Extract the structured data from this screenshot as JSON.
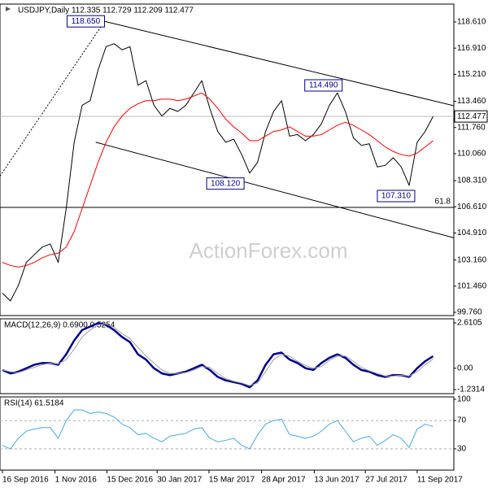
{
  "chart_data": [
    {
      "type": "line",
      "title": "USDJPY,Daily  112.335 112.729 112.209 112.477",
      "x": [
        0,
        1,
        2,
        3,
        4,
        5,
        6,
        7,
        8,
        9,
        10,
        11,
        12,
        13,
        14,
        15,
        16,
        17,
        18,
        19,
        20,
        21,
        22,
        23,
        24,
        25,
        26,
        27,
        28,
        29,
        30,
        31,
        32,
        33,
        34,
        35,
        36,
        37,
        38,
        39,
        40,
        41,
        42,
        43,
        44,
        45,
        46,
        47,
        48,
        49,
        50,
        51,
        52,
        53,
        54
      ],
      "xlim": [
        -0.3,
        56.6
      ],
      "xticks": [
        {
          "value": 0,
          "label": "16 Sep 2016"
        },
        {
          "value": 6.6,
          "label": "1 Nov 2016"
        },
        {
          "value": 13.1,
          "label": "15 Dec 2016"
        },
        {
          "value": 19.4,
          "label": "30 Jan 2017"
        },
        {
          "value": 25.9,
          "label": "15 Mar 2017"
        },
        {
          "value": 32.5,
          "label": "28 Apr 2017"
        },
        {
          "value": 39.1,
          "label": "13 Jun 2017"
        },
        {
          "value": 45.5,
          "label": "27 Jul 2017"
        },
        {
          "value": 52.0,
          "label": "11 Sep 2017"
        }
      ],
      "ylim": [
        99.55,
        119.77
      ],
      "yticks": [
        {
          "value": 118.61,
          "label": "118.610"
        },
        {
          "value": 116.91,
          "label": "116.910"
        },
        {
          "value": 115.21,
          "label": "115.210"
        },
        {
          "value": 113.46,
          "label": "113.460"
        },
        {
          "value": 111.76,
          "label": "111.760"
        },
        {
          "value": 110.06,
          "label": "110.060"
        },
        {
          "value": 108.31,
          "label": "108.310"
        },
        {
          "value": 106.61,
          "label": "106.610"
        },
        {
          "value": 104.91,
          "label": "104.910"
        },
        {
          "value": 103.16,
          "label": "103.160"
        },
        {
          "value": 101.46,
          "label": "101.460"
        },
        {
          "value": 99.76,
          "label": "99.760"
        }
      ],
      "series": [
        {
          "color": "#000000",
          "values": [
            101.0,
            100.5,
            101.5,
            103.0,
            103.5,
            104.0,
            104.2,
            103.0,
            106.5,
            110.8,
            113.2,
            113.5,
            115.5,
            117.0,
            117.2,
            116.8,
            117.0,
            114.5,
            114.8,
            113.2,
            112.5,
            113.0,
            112.8,
            113.2,
            114.0,
            114.8,
            113.0,
            111.5,
            110.8,
            111.0,
            110.0,
            108.8,
            109.5,
            111.5,
            112.8,
            113.5,
            111.2,
            111.3,
            110.9,
            111.3,
            112.0,
            113.2,
            114.0,
            112.8,
            111.1,
            110.6,
            110.7,
            109.2,
            109.3,
            109.8,
            109.2,
            108.0,
            110.8,
            111.5,
            112.477
          ]
        },
        {
          "color": "#ff0000",
          "values": [
            103.0,
            102.8,
            102.7,
            102.8,
            103.0,
            103.3,
            103.5,
            103.6,
            104.0,
            105.0,
            106.5,
            108.0,
            109.5,
            110.8,
            111.8,
            112.5,
            113.0,
            113.3,
            113.5,
            113.5,
            113.6,
            113.6,
            113.5,
            113.6,
            113.8,
            114.0,
            113.6,
            113.0,
            112.3,
            111.8,
            111.4,
            110.9,
            110.9,
            111.2,
            111.5,
            111.6,
            111.8,
            111.5,
            111.2,
            111.2,
            111.3,
            111.6,
            111.9,
            112.1,
            111.9,
            111.6,
            111.3,
            110.9,
            110.5,
            110.2,
            110.0,
            109.9,
            110.1,
            110.5,
            110.9
          ]
        }
      ],
      "lines": [
        {
          "x": [
            12.8,
            56.6
          ],
          "y": [
            118.65,
            113.17
          ]
        },
        {
          "x": [
            11.7,
            56.6
          ],
          "y": [
            110.8,
            104.6
          ]
        },
        {
          "x": [
            -0.3,
            12.8
          ],
          "y": [
            108.6,
            118.65
          ],
          "dash": true
        }
      ],
      "hlines": [
        {
          "y": 106.57,
          "level": 61.8
        }
      ],
      "annotations": [
        {
          "x": 12.8,
          "value": 118.65,
          "label": "118.650"
        },
        {
          "x": 42.6,
          "value": 114.49,
          "label": "114.490"
        },
        {
          "x": 30.3,
          "value": 108.12,
          "label": "108.120"
        },
        {
          "x": 51.7,
          "value": 107.31,
          "label": "107.310"
        }
      ],
      "last_price": 112.477,
      "watermark": "ActionForex.com"
    },
    {
      "type": "line",
      "title": "MACD(12,26,9) 0.6900 0.5254",
      "ylim": [
        -1.465,
        2.845
      ],
      "yticks": [
        2.6105,
        {
          "value": 0,
          "label": "0.00"
        },
        -1.2314
      ],
      "series": [
        {
          "color": "#00008b",
          "width": 2.5,
          "values": [
            -0.1,
            -0.3,
            -0.2,
            0,
            0.2,
            0.3,
            0.3,
            0.2,
            0.8,
            1.6,
            2.2,
            2.4,
            2.6,
            2.5,
            2.2,
            1.8,
            1.5,
            0.8,
            0.5,
            0.0,
            -0.3,
            -0.4,
            -0.3,
            -0.2,
            0.0,
            0.2,
            -0.1,
            -0.5,
            -0.7,
            -0.8,
            -0.9,
            -1.1,
            -0.7,
            0.2,
            0.8,
            0.9,
            0.5,
            0.3,
            0.0,
            -0.1,
            0.3,
            0.6,
            0.8,
            0.6,
            0.2,
            -0.1,
            -0.2,
            -0.4,
            -0.5,
            -0.4,
            -0.4,
            -0.5,
            0.0,
            0.4,
            0.69
          ]
        },
        {
          "color": "#a0a0a0",
          "width": 1,
          "values": [
            -0.1,
            -0.2,
            -0.25,
            -0.1,
            0.05,
            0.2,
            0.3,
            0.25,
            0.5,
            1.1,
            1.8,
            2.2,
            2.5,
            2.55,
            2.35,
            2.0,
            1.7,
            1.2,
            0.7,
            0.3,
            -0.1,
            -0.3,
            -0.3,
            -0.25,
            -0.1,
            0.1,
            0.05,
            -0.3,
            -0.6,
            -0.75,
            -0.85,
            -1.0,
            -0.85,
            -0.2,
            0.5,
            0.8,
            0.7,
            0.4,
            0.15,
            0.0,
            0.1,
            0.45,
            0.7,
            0.7,
            0.4,
            0.05,
            -0.15,
            -0.3,
            -0.45,
            -0.45,
            -0.4,
            -0.45,
            -0.2,
            0.2,
            0.5254
          ]
        }
      ]
    },
    {
      "type": "line",
      "title": "RSI(14) 61.5184",
      "ylim": [
        0,
        103.4
      ],
      "yticks": [
        100,
        70,
        30
      ],
      "grid_lines": [
        70,
        30
      ],
      "series": [
        {
          "color": "#4aa8e0",
          "width": 1,
          "values": [
            35,
            30,
            45,
            55,
            58,
            60,
            60,
            45,
            70,
            85,
            85,
            80,
            82,
            80,
            75,
            65,
            60,
            50,
            52,
            45,
            40,
            48,
            50,
            52,
            58,
            60,
            45,
            40,
            42,
            45,
            35,
            30,
            50,
            65,
            70,
            72,
            50,
            48,
            45,
            48,
            55,
            65,
            70,
            55,
            40,
            45,
            48,
            35,
            42,
            50,
            45,
            32,
            58,
            65,
            61.5184
          ]
        }
      ]
    }
  ]
}
